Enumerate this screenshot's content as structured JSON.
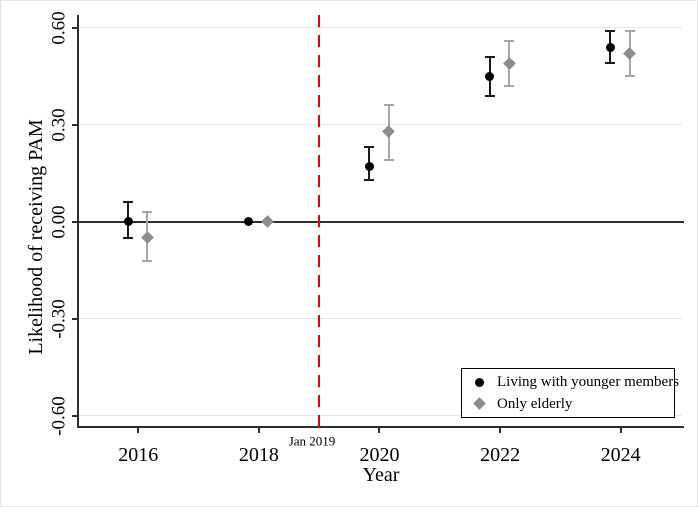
{
  "chart_data": {
    "type": "scatter",
    "subtype": "coefficient-plot-with-confidence-intervals",
    "title": "",
    "xlabel": "Year",
    "ylabel": "Likelihood of receiving PAM",
    "x_ticks": [
      2016,
      2018,
      2020,
      2022,
      2024
    ],
    "y_ticks": [
      0.6,
      0.3,
      0.0,
      -0.3,
      -0.6
    ],
    "y_tick_labels": [
      "0.60",
      "0.30",
      "0.00",
      "-0.30",
      "-0.60"
    ],
    "xlim": [
      2015,
      2025.05
    ],
    "ylim": [
      -0.635,
      0.64
    ],
    "grid": "horizontal-light-gray",
    "zero_line_y": 0.0,
    "vline": {
      "x": 2019.0,
      "label": "Jan 2019",
      "color": "#ee0000",
      "style": "dashed"
    },
    "legend": {
      "position": "bottom-right",
      "border": true
    },
    "series": [
      {
        "name": "Living with younger members",
        "marker": "circle",
        "color": "#000000",
        "ci_color": "#1a1a1a",
        "x_offset_years": -0.17,
        "points": [
          {
            "x": 2016,
            "y": 0.0,
            "lo": -0.05,
            "hi": 0.06
          },
          {
            "x": 2018,
            "y": 0.0,
            "lo": null,
            "hi": null,
            "reference": true
          },
          {
            "x": 2020,
            "y": 0.17,
            "lo": 0.13,
            "hi": 0.23
          },
          {
            "x": 2022,
            "y": 0.45,
            "lo": 0.39,
            "hi": 0.51
          },
          {
            "x": 2024,
            "y": 0.54,
            "lo": 0.49,
            "hi": 0.59
          }
        ]
      },
      {
        "name": "Only elderly",
        "marker": "diamond",
        "color": "#8c8c8c",
        "ci_color": "#a6a6a6",
        "x_offset_years": 0.15,
        "points": [
          {
            "x": 2016,
            "y": -0.05,
            "lo": -0.12,
            "hi": 0.03
          },
          {
            "x": 2018,
            "y": 0.0,
            "lo": null,
            "hi": null,
            "reference": true
          },
          {
            "x": 2020,
            "y": 0.28,
            "lo": 0.19,
            "hi": 0.36
          },
          {
            "x": 2022,
            "y": 0.49,
            "lo": 0.42,
            "hi": 0.56
          },
          {
            "x": 2024,
            "y": 0.52,
            "lo": 0.45,
            "hi": 0.59
          }
        ]
      }
    ]
  }
}
